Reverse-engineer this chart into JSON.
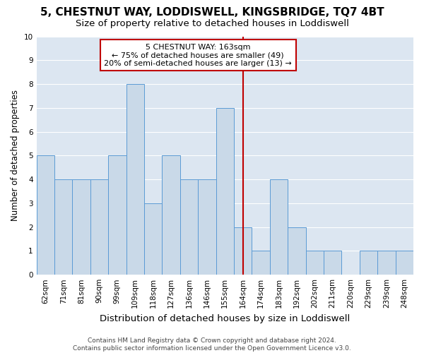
{
  "title": "5, CHESTNUT WAY, LODDISWELL, KINGSBRIDGE, TQ7 4BT",
  "subtitle": "Size of property relative to detached houses in Loddiswell",
  "xlabel": "Distribution of detached houses by size in Loddiswell",
  "ylabel": "Number of detached properties",
  "categories": [
    "62sqm",
    "71sqm",
    "81sqm",
    "90sqm",
    "99sqm",
    "109sqm",
    "118sqm",
    "127sqm",
    "136sqm",
    "146sqm",
    "155sqm",
    "164sqm",
    "174sqm",
    "183sqm",
    "192sqm",
    "202sqm",
    "211sqm",
    "220sqm",
    "229sqm",
    "239sqm",
    "248sqm"
  ],
  "values": [
    5,
    4,
    4,
    4,
    5,
    8,
    3,
    5,
    4,
    4,
    7,
    2,
    1,
    4,
    2,
    1,
    1,
    0,
    1,
    1,
    1
  ],
  "bar_color": "#c9d9e8",
  "bar_edge_color": "#5b9bd5",
  "highlight_index": 11,
  "highlight_line_color": "#c00000",
  "annotation_text": "5 CHESTNUT WAY: 163sqm\n← 75% of detached houses are smaller (49)\n20% of semi-detached houses are larger (13) →",
  "annotation_box_color": "#c00000",
  "ylim": [
    0,
    10
  ],
  "yticks": [
    0,
    1,
    2,
    3,
    4,
    5,
    6,
    7,
    8,
    9,
    10
  ],
  "grid_color": "#ffffff",
  "bg_color": "#dce6f1",
  "footer": "Contains HM Land Registry data © Crown copyright and database right 2024.\nContains public sector information licensed under the Open Government Licence v3.0.",
  "title_fontsize": 11,
  "subtitle_fontsize": 9.5,
  "xlabel_fontsize": 9.5,
  "ylabel_fontsize": 8.5,
  "tick_fontsize": 7.5,
  "annotation_fontsize": 8,
  "footer_fontsize": 6.5
}
